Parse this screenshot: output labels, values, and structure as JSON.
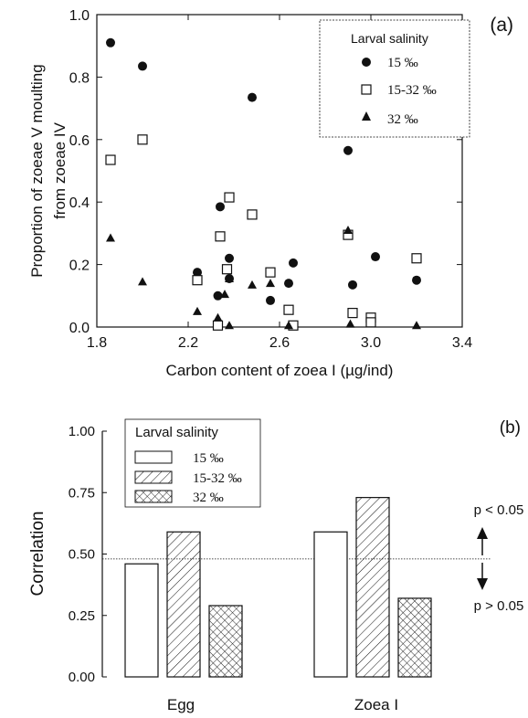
{
  "chart_data": [
    {
      "type": "scatter",
      "panel_label": "(a)",
      "xlabel": "Carbon content of zoea I (µg/ind)",
      "ylabel": "Proportion of zoeae V moulting from zoeae IV",
      "ylabel_lines": [
        "Proportion of zoeae V moulting",
        "from zoeae IV"
      ],
      "xlim": [
        1.8,
        3.4
      ],
      "ylim": [
        0.0,
        1.0
      ],
      "xticks": [
        "1.8",
        "2.2",
        "2.6",
        "3.0",
        "3.4"
      ],
      "yticks": [
        "0.0",
        "0.2",
        "0.4",
        "0.6",
        "0.8",
        "1.0"
      ],
      "legend_title": "Larval  salinity",
      "legend_position": "top-right",
      "series": [
        {
          "name": "15 ‰",
          "marker": "filled-circle",
          "points": [
            [
              1.86,
              0.91
            ],
            [
              2.0,
              0.835
            ],
            [
              2.24,
              0.175
            ],
            [
              2.34,
              0.385
            ],
            [
              2.38,
              0.22
            ],
            [
              2.33,
              0.1
            ],
            [
              2.38,
              0.155
            ],
            [
              2.48,
              0.735
            ],
            [
              2.56,
              0.085
            ],
            [
              2.64,
              0.14
            ],
            [
              2.66,
              0.205
            ],
            [
              2.9,
              0.565
            ],
            [
              2.92,
              0.135
            ],
            [
              3.02,
              0.225
            ],
            [
              3.2,
              0.15
            ]
          ]
        },
        {
          "name": "15-32 ‰",
          "marker": "open-square",
          "points": [
            [
              1.86,
              0.535
            ],
            [
              2.0,
              0.6
            ],
            [
              2.24,
              0.15
            ],
            [
              2.34,
              0.29
            ],
            [
              2.33,
              0.005
            ],
            [
              2.38,
              0.415
            ],
            [
              2.37,
              0.185
            ],
            [
              2.48,
              0.36
            ],
            [
              2.56,
              0.175
            ],
            [
              2.64,
              0.055
            ],
            [
              2.66,
              0.005
            ],
            [
              2.9,
              0.295
            ],
            [
              2.92,
              0.045
            ],
            [
              3.0,
              0.03
            ],
            [
              3.0,
              0.015
            ],
            [
              3.2,
              0.22
            ]
          ]
        },
        {
          "name": "32 ‰",
          "marker": "filled-triangle",
          "points": [
            [
              1.86,
              0.285
            ],
            [
              2.0,
              0.145
            ],
            [
              2.24,
              0.05
            ],
            [
              2.33,
              0.03
            ],
            [
              2.36,
              0.105
            ],
            [
              2.38,
              0.005
            ],
            [
              2.38,
              0.155
            ],
            [
              2.48,
              0.135
            ],
            [
              2.56,
              0.14
            ],
            [
              2.64,
              0.005
            ],
            [
              2.9,
              0.31
            ],
            [
              2.91,
              0.01
            ],
            [
              3.2,
              0.005
            ]
          ]
        }
      ]
    },
    {
      "type": "bar",
      "panel_label": "(b)",
      "ylabel": "Correlation",
      "categories": [
        "Egg",
        "Zoea I"
      ],
      "ylim": [
        0.0,
        1.0
      ],
      "yticks": [
        "0.00",
        "0.25",
        "0.50",
        "0.75",
        "1.00"
      ],
      "legend_title": "Larval  salinity",
      "legend_position": "top-left",
      "series": [
        {
          "name": "15 ‰",
          "fill": "open",
          "values": [
            0.46,
            0.59
          ]
        },
        {
          "name": "15-32 ‰",
          "fill": "diagonal-hatch",
          "values": [
            0.59,
            0.73
          ]
        },
        {
          "name": "32 ‰",
          "fill": "cross-hatch",
          "values": [
            0.29,
            0.32
          ]
        }
      ],
      "reference_line": 0.48,
      "annotations": [
        "p < 0.05",
        "p > 0.05"
      ]
    }
  ]
}
